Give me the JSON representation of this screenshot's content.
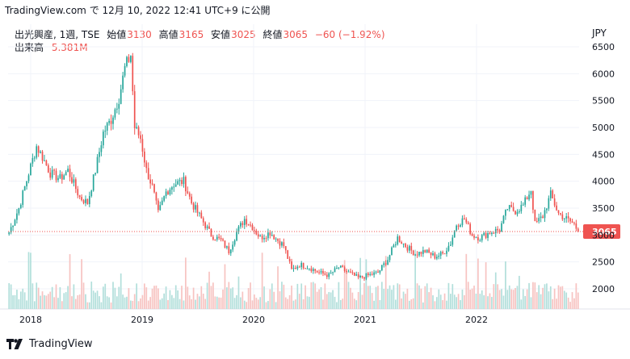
{
  "header": {
    "source": "TradingView.com",
    "date_text": "で 12月 10, 2022 12:41 UTC+9 に公開"
  },
  "legend": {
    "symbol": "出光興産, 1週, TSE",
    "open_label": "始値",
    "open_value": "3130",
    "high_label": "高値",
    "high_value": "3165",
    "low_label": "安値",
    "low_value": "3025",
    "close_label": "終値",
    "close_value": "3065",
    "change": "−60 (−1.92%)",
    "volume_label": "出来高",
    "volume_value": "5.381M"
  },
  "currency": "JPY",
  "footer": {
    "brand": "TradingView"
  },
  "colors": {
    "up": "#26a69a",
    "down": "#ef5350",
    "up_volume": "#b2dfdb",
    "down_volume": "#f7c3c1",
    "grid": "#f0f3fa",
    "last_price": "#ef5350"
  },
  "chart_data": {
    "type": "candlestick",
    "title": "",
    "xlabel": "",
    "ylabel": "",
    "ylim": [
      1600,
      6600
    ],
    "y_ticks": [
      2000,
      2500,
      3000,
      3500,
      4000,
      4500,
      5000,
      5500,
      6000,
      6500
    ],
    "y_tick_labels": [
      "2000",
      "2500",
      "3000",
      "3500",
      "4000",
      "4500",
      "5000",
      "5500",
      "6000",
      "6500"
    ],
    "x_tick_labels": [
      "2018",
      "2019",
      "2020",
      "2021",
      "2022"
    ],
    "last_price": 3065,
    "last_price_label": "3065",
    "anchors": [
      {
        "t": 0,
        "v": 3050
      },
      {
        "t": 5,
        "v": 3500
      },
      {
        "t": 10,
        "v": 4150
      },
      {
        "t": 14,
        "v": 4650
      },
      {
        "t": 17,
        "v": 4450
      },
      {
        "t": 21,
        "v": 4150
      },
      {
        "t": 26,
        "v": 4050
      },
      {
        "t": 30,
        "v": 4200
      },
      {
        "t": 36,
        "v": 3700
      },
      {
        "t": 40,
        "v": 3600
      },
      {
        "t": 44,
        "v": 4200
      },
      {
        "t": 48,
        "v": 4900
      },
      {
        "t": 52,
        "v": 5150
      },
      {
        "t": 56,
        "v": 5550
      },
      {
        "t": 59,
        "v": 6100
      },
      {
        "t": 62,
        "v": 6350
      },
      {
        "t": 64,
        "v": 5000
      },
      {
        "t": 67,
        "v": 4800
      },
      {
        "t": 70,
        "v": 4200
      },
      {
        "t": 73,
        "v": 3900
      },
      {
        "t": 76,
        "v": 3400
      },
      {
        "t": 80,
        "v": 3800
      },
      {
        "t": 84,
        "v": 3950
      },
      {
        "t": 89,
        "v": 4000
      },
      {
        "t": 93,
        "v": 3600
      },
      {
        "t": 98,
        "v": 3300
      },
      {
        "t": 103,
        "v": 3000
      },
      {
        "t": 108,
        "v": 2900
      },
      {
        "t": 112,
        "v": 2700
      },
      {
        "t": 116,
        "v": 3050
      },
      {
        "t": 120,
        "v": 3300
      },
      {
        "t": 124,
        "v": 3150
      },
      {
        "t": 128,
        "v": 2950
      },
      {
        "t": 133,
        "v": 3050
      },
      {
        "t": 137,
        "v": 2900
      },
      {
        "t": 140,
        "v": 2800
      },
      {
        "t": 144,
        "v": 2350
      },
      {
        "t": 148,
        "v": 2450
      },
      {
        "t": 153,
        "v": 2400
      },
      {
        "t": 158,
        "v": 2300
      },
      {
        "t": 163,
        "v": 2250
      },
      {
        "t": 168,
        "v": 2400
      },
      {
        "t": 173,
        "v": 2300
      },
      {
        "t": 178,
        "v": 2200
      },
      {
        "t": 183,
        "v": 2250
      },
      {
        "t": 188,
        "v": 2300
      },
      {
        "t": 193,
        "v": 2550
      },
      {
        "t": 198,
        "v": 2950
      },
      {
        "t": 202,
        "v": 2800
      },
      {
        "t": 207,
        "v": 2650
      },
      {
        "t": 212,
        "v": 2700
      },
      {
        "t": 217,
        "v": 2600
      },
      {
        "t": 221,
        "v": 2650
      },
      {
        "t": 225,
        "v": 2850
      },
      {
        "t": 228,
        "v": 3200
      },
      {
        "t": 232,
        "v": 3300
      },
      {
        "t": 236,
        "v": 3000
      },
      {
        "t": 240,
        "v": 2950
      },
      {
        "t": 245,
        "v": 3050
      },
      {
        "t": 250,
        "v": 3100
      },
      {
        "t": 254,
        "v": 3500
      },
      {
        "t": 258,
        "v": 3450
      },
      {
        "t": 262,
        "v": 3550
      },
      {
        "t": 266,
        "v": 3850
      },
      {
        "t": 268,
        "v": 3200
      },
      {
        "t": 272,
        "v": 3350
      },
      {
        "t": 276,
        "v": 3750
      },
      {
        "t": 280,
        "v": 3400
      },
      {
        "t": 284,
        "v": 3300
      },
      {
        "t": 288,
        "v": 3200
      },
      {
        "t": 290,
        "v": 3065
      }
    ]
  }
}
